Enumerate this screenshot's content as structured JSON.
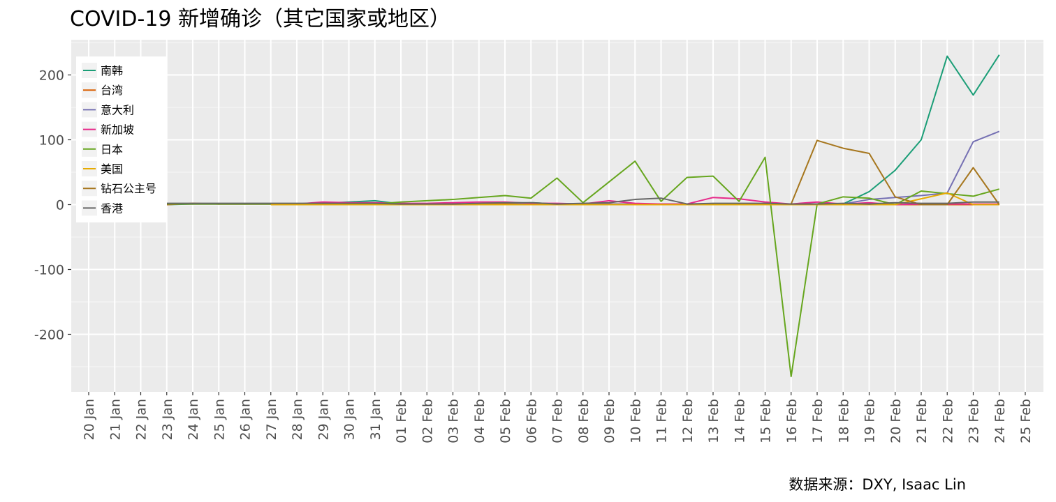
{
  "chart_data": {
    "type": "line",
    "title": "COVID-19 新增确诊（其它国家或地区）",
    "caption": "数据来源：DXY, Isaac Lin",
    "xlabel": "",
    "ylabel": "",
    "ylim": [
      -290,
      255
    ],
    "yticks": [
      200,
      100,
      0,
      -100,
      -200
    ],
    "ytick_labels": [
      "200",
      "100",
      "0",
      "-100",
      "-200"
    ],
    "categories": [
      "20 Jan",
      "21 Jan",
      "22 Jan",
      "23 Jan",
      "24 Jan",
      "25 Jan",
      "26 Jan",
      "27 Jan",
      "28 Jan",
      "29 Jan",
      "30 Jan",
      "31 Jan",
      "01 Feb",
      "02 Feb",
      "03 Feb",
      "04 Feb",
      "05 Feb",
      "06 Feb",
      "07 Feb",
      "08 Feb",
      "09 Feb",
      "10 Feb",
      "11 Feb",
      "12 Feb",
      "13 Feb",
      "14 Feb",
      "15 Feb",
      "16 Feb",
      "17 Feb",
      "18 Feb",
      "19 Feb",
      "20 Feb",
      "21 Feb",
      "22 Feb",
      "23 Feb",
      "24 Feb",
      "25 Feb"
    ],
    "grid": true,
    "legend_position": "top-left",
    "panel_background": "#ebebeb",
    "series": [
      {
        "name": "南韩",
        "color": "#1b9e77",
        "values": [
          null,
          null,
          null,
          0,
          1,
          1,
          1,
          1,
          1,
          2,
          4,
          6,
          1,
          0,
          0,
          1,
          1,
          3,
          1,
          1,
          1,
          1,
          1,
          1,
          1,
          1,
          1,
          1,
          1,
          1,
          20,
          53,
          100,
          229,
          169,
          231,
          null
        ]
      },
      {
        "name": "台湾",
        "color": "#d95f02",
        "values": [
          null,
          null,
          null,
          0,
          2,
          1,
          1,
          1,
          1,
          1,
          1,
          1,
          1,
          1,
          1,
          1,
          1,
          1,
          1,
          1,
          1,
          1,
          1,
          0,
          0,
          0,
          0,
          0,
          0,
          0,
          0,
          0,
          0,
          0,
          0,
          0,
          null
        ]
      },
      {
        "name": "意大利",
        "color": "#7570b3",
        "values": [
          null,
          null,
          null,
          null,
          null,
          null,
          null,
          null,
          null,
          null,
          null,
          null,
          0,
          0,
          0,
          0,
          0,
          1,
          1,
          1,
          1,
          1,
          1,
          1,
          1,
          1,
          1,
          1,
          1,
          1,
          8,
          11,
          14,
          18,
          97,
          113,
          null
        ]
      },
      {
        "name": "新加坡",
        "color": "#e7298a",
        "values": [
          null,
          null,
          null,
          1,
          1,
          1,
          1,
          1,
          1,
          4,
          3,
          3,
          2,
          2,
          3,
          4,
          4,
          2,
          2,
          1,
          6,
          2,
          1,
          1,
          11,
          9,
          4,
          1,
          4,
          1,
          3,
          0,
          1,
          1,
          1,
          1,
          null
        ]
      },
      {
        "name": "日本",
        "color": "#66a61e",
        "values": [
          null,
          null,
          null,
          1,
          1,
          1,
          1,
          1,
          1,
          1,
          1,
          1,
          4,
          6,
          8,
          11,
          14,
          10,
          41,
          3,
          35,
          67,
          5,
          42,
          44,
          5,
          73,
          -265,
          1,
          12,
          10,
          0,
          21,
          17,
          13,
          24,
          null
        ]
      },
      {
        "name": "美国",
        "color": "#e6ab02",
        "values": [
          null,
          null,
          null,
          null,
          null,
          null,
          null,
          0,
          0,
          0,
          0,
          0,
          0,
          0,
          0,
          0,
          0,
          0,
          0,
          0,
          0,
          0,
          0,
          0,
          0,
          0,
          0,
          0,
          0,
          0,
          0,
          0,
          9,
          18,
          0,
          0,
          null
        ]
      },
      {
        "name": "钻石公主号",
        "color": "#a6761d",
        "values": [
          null,
          null,
          null,
          null,
          null,
          null,
          null,
          null,
          null,
          null,
          null,
          null,
          null,
          null,
          null,
          null,
          null,
          null,
          null,
          null,
          null,
          null,
          null,
          null,
          null,
          null,
          null,
          1,
          99,
          87,
          79,
          12,
          0,
          0,
          57,
          0,
          null
        ]
      },
      {
        "name": "香港",
        "color": "#666666",
        "values": [
          null,
          null,
          null,
          2,
          2,
          2,
          2,
          2,
          2,
          2,
          2,
          2,
          1,
          1,
          1,
          2,
          3,
          3,
          1,
          2,
          3,
          8,
          10,
          1,
          2,
          2,
          2,
          1,
          1,
          2,
          1,
          3,
          2,
          2,
          4,
          4,
          null
        ]
      }
    ]
  }
}
